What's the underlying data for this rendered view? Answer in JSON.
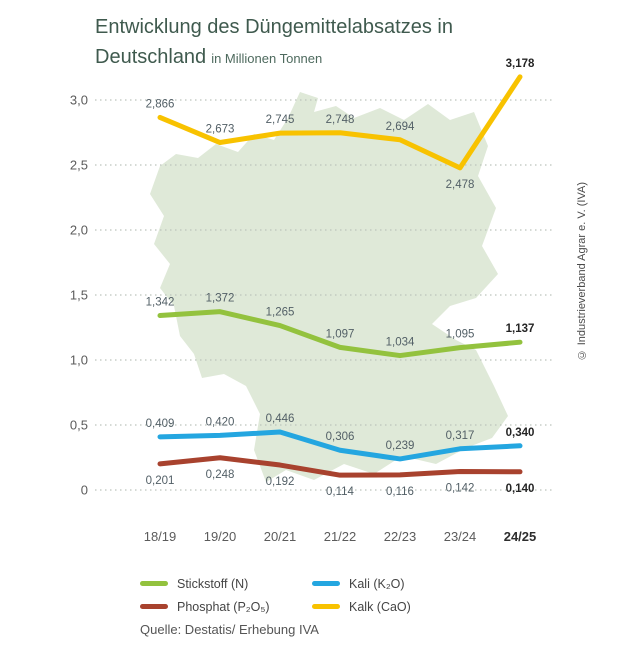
{
  "header": {
    "title_line1": "Entwicklung des Düngemittelabsatzes in",
    "title_line2": "Deutschland",
    "subtitle": "in Millionen Tonnen"
  },
  "chart_data": {
    "type": "line",
    "title": "Entwicklung des Düngemittelabsatzes in Deutschland",
    "unit": "in Millionen Tonnen",
    "categories": [
      "18/19",
      "19/20",
      "20/21",
      "21/22",
      "22/23",
      "23/24",
      "24/25"
    ],
    "series": [
      {
        "name": "Kalk (CaO)",
        "color": "#f8c200",
        "values": [
          2.866,
          2.673,
          2.745,
          2.748,
          2.694,
          2.478,
          3.178
        ],
        "label_side": "above",
        "label_side_overrides": {
          "5": "below"
        }
      },
      {
        "name": "Stickstoff (N)",
        "color": "#93c23e",
        "values": [
          1.342,
          1.372,
          1.265,
          1.097,
          1.034,
          1.095,
          1.137
        ],
        "label_side": "above"
      },
      {
        "name": "Kali (K₂O)",
        "color": "#24a6e0",
        "values": [
          0.409,
          0.42,
          0.446,
          0.306,
          0.239,
          0.317,
          0.34
        ],
        "label_side": "above"
      },
      {
        "name": "Phosphat (P₂O₅)",
        "color": "#a8422e",
        "values": [
          0.201,
          0.248,
          0.192,
          0.114,
          0.116,
          0.142,
          0.14
        ],
        "label_side": "below"
      }
    ],
    "ylim": [
      0,
      3.0
    ],
    "yticks": [
      0,
      0.5,
      1.0,
      1.5,
      2.0,
      2.5,
      3.0
    ],
    "ytick_labels": [
      "0",
      "0,5",
      "1,0",
      "1,5",
      "2,0",
      "2,5",
      "3,0"
    ],
    "grid": "dotted-horizontal",
    "legend_position": "bottom",
    "decimal_separator": ",",
    "last_category_emphasis": true,
    "background_image": "germany-map-silhouette"
  },
  "legend": {
    "items": [
      {
        "label": "Stickstoff (N)",
        "color": "#93c23e"
      },
      {
        "label": "Kali (K₂O)",
        "color": "#24a6e0"
      },
      {
        "label": "Phosphat (P₂O₅)",
        "color": "#a8422e"
      },
      {
        "label": "Kalk (CaO)",
        "color": "#f8c200"
      }
    ]
  },
  "source": "Quelle: Destatis/ Erhebung IVA",
  "credit": "© Industrieverband Agrar e. V. (IVA)"
}
